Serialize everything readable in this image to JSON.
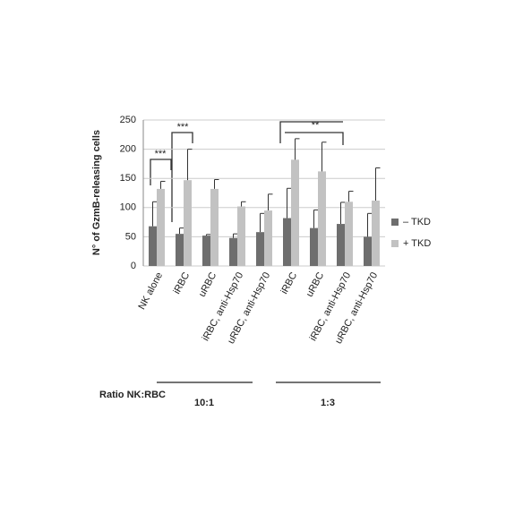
{
  "chart_data": {
    "type": "bar",
    "y_label": "N° of GzmB-releasing cells",
    "categories": [
      "NK alone",
      "iRBC",
      "uRBC",
      "iRBC, anti-Hsp70",
      "uRBC, anti-Hsp70",
      "iRBC",
      "uRBC",
      "iRBC, anti-Hsp70",
      "uRBC, anti-Hsp70"
    ],
    "series": [
      {
        "name": "–  TKD",
        "color": "#6e6e6e",
        "values": [
          68,
          55,
          52,
          48,
          58,
          82,
          65,
          72,
          50
        ],
        "errors": [
          42,
          10,
          2,
          7,
          32,
          51,
          31,
          37,
          40
        ]
      },
      {
        "name": "+ TKD",
        "color": "#c2c2c2",
        "values": [
          132,
          147,
          132,
          102,
          95,
          182,
          162,
          110,
          112
        ],
        "errors": [
          13,
          53,
          16,
          8,
          28,
          36,
          50,
          18,
          56
        ]
      }
    ],
    "ylim": [
      0,
      250
    ],
    "yticks": [
      0,
      50,
      100,
      150,
      200,
      250
    ],
    "grid": true,
    "legend": "right",
    "annotations": [
      "***",
      "***",
      "**"
    ],
    "groups": {
      "title": "Ratio NK:RBC",
      "labels": [
        "10:1",
        "1:3"
      ]
    }
  }
}
